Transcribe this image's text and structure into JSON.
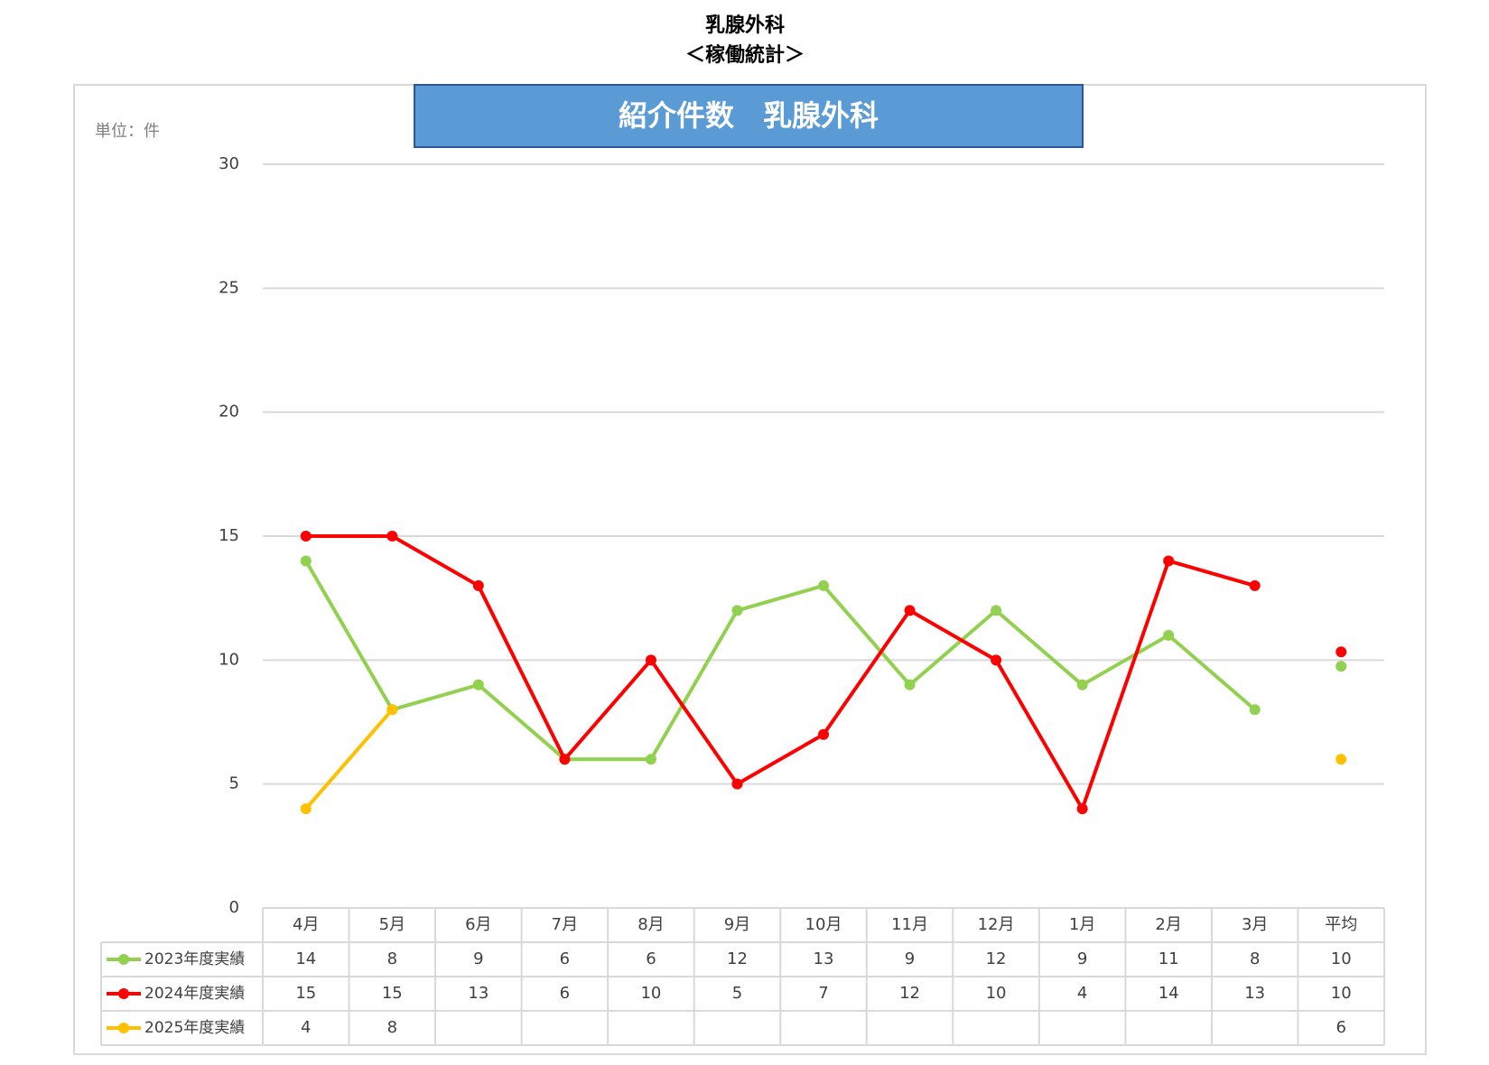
{
  "page_title": "乳腺外科",
  "page_subtitle": "＜稼働統計＞",
  "chart_data": {
    "type": "line",
    "title": "紹介件数　乳腺外科",
    "unit_label": "単位：件",
    "categories": [
      "4月",
      "5月",
      "6月",
      "7月",
      "8月",
      "9月",
      "10月",
      "11月",
      "12月",
      "1月",
      "2月",
      "3月"
    ],
    "average_category": "平均",
    "series": [
      {
        "name": "2023年度実績",
        "color": "#92d050",
        "values": [
          14,
          8,
          9,
          6,
          6,
          12,
          13,
          9,
          12,
          9,
          11,
          8
        ],
        "average": 9.75,
        "average_label": "10"
      },
      {
        "name": "2024年度実績",
        "color": "#ff0000",
        "values": [
          15,
          15,
          13,
          6,
          10,
          5,
          7,
          12,
          10,
          4,
          14,
          13
        ],
        "average": 10.33,
        "average_label": "10"
      },
      {
        "name": "2025年度実績",
        "color": "#ffc000",
        "values": [
          4,
          8,
          null,
          null,
          null,
          null,
          null,
          null,
          null,
          null,
          null,
          null
        ],
        "average": 6,
        "average_label": "6"
      }
    ],
    "ylim": [
      0,
      30
    ],
    "yticks": [
      0,
      5,
      10,
      15,
      20,
      25,
      30
    ],
    "grid": true
  }
}
